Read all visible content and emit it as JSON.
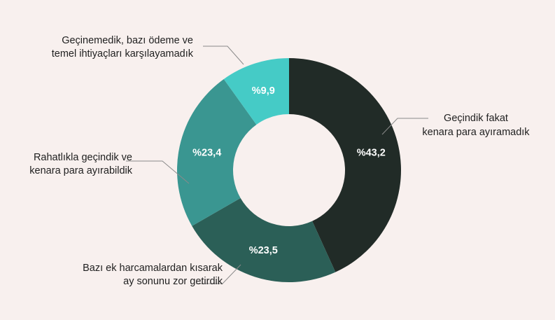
{
  "chart_data": {
    "type": "pie",
    "donut": true,
    "categories": [
      "Geçindik fakat kenara para ayıramadık",
      "Bazı ek harcamalardan kısarak ay sonunu zor getirdik",
      "Rahatlıkla geçindik ve kenara para ayırabildik",
      "Geçinemedik, bazı ödeme ve temel ihtiyaçları karşılayamadık"
    ],
    "values": [
      43.2,
      23.5,
      23.4,
      9.9
    ],
    "value_labels": [
      "%43,2",
      "%23,5",
      "%23,4",
      "%9,9"
    ],
    "colors": [
      "#212b27",
      "#2b5f57",
      "#3a9691",
      "#45cbc6"
    ],
    "label_lines": [
      [
        "Geçindik fakat",
        "kenara para ayıramadık"
      ],
      [
        "Bazı ek harcamalardan kısarak",
        "ay sonunu zor getirdik"
      ],
      [
        "Rahatlıkla geçindik ve",
        "kenara para ayırabildik"
      ],
      [
        "Geçinemedik, bazı ödeme ve",
        "temel ihtiyaçları karşılayamadık"
      ]
    ],
    "start_angle_deg": 0,
    "direction": "clockwise"
  }
}
